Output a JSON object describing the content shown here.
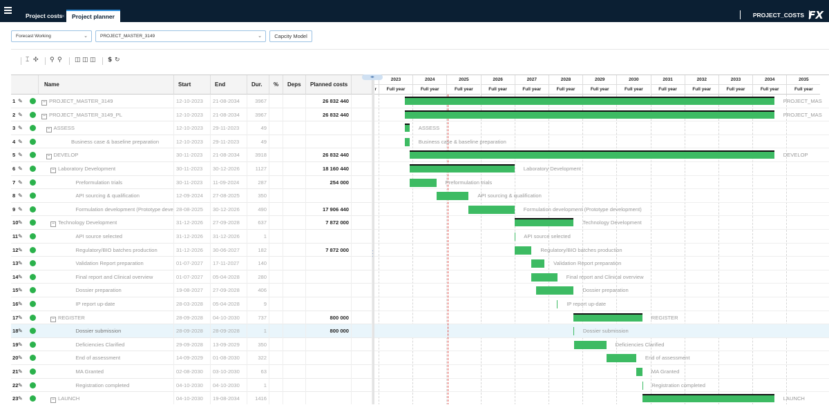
{
  "topbar": {
    "tabs": [
      {
        "label": "Project costs",
        "close": "×"
      },
      {
        "label": "Project planner"
      }
    ],
    "title": "PROJECT_COSTS",
    "logo": "FX"
  },
  "selectors": {
    "version": "Forecast Working",
    "project": "PROJECT_MASTER_3149",
    "capacity_button": "Capcity Model"
  },
  "toolbar": {
    "icons": [
      "column-fit-icon",
      "expand-all-icon",
      "zoom-out-icon",
      "zoom-in-icon",
      "view-layout-1-icon",
      "view-layout-2-icon",
      "view-layout-3-icon",
      "currency-icon",
      "refresh-icon"
    ],
    "currency": "$",
    "refresh": "↻"
  },
  "table": {
    "headers": {
      "name": "Name",
      "start": "Start",
      "end": "End",
      "dur": "Dur.",
      "pct": "%",
      "deps": "Deps",
      "cost": "Planned costs"
    },
    "rows": [
      {
        "num": "1",
        "level": 0,
        "expander": "−",
        "name": "PROJECT_MASTER_3149",
        "start": "12-10-2023",
        "end": "21-08-2034",
        "dur": "3967",
        "cost": "26 832 440"
      },
      {
        "num": "2",
        "level": 0,
        "expander": "−",
        "name": "PROJECT_MASTER_3149_PL",
        "start": "12-10-2023",
        "end": "21-08-2034",
        "dur": "3967",
        "cost": "26 832 440"
      },
      {
        "num": "3",
        "level": 1,
        "expander": "−",
        "name": "ASSESS",
        "start": "12-10-2023",
        "end": "29-11-2023",
        "dur": "49",
        "cost": ""
      },
      {
        "num": "4",
        "level": 2,
        "expander": "",
        "name": "Business case & baseline preparation",
        "start": "12-10-2023",
        "end": "29-11-2023",
        "dur": "49",
        "cost": ""
      },
      {
        "num": "5",
        "level": 1,
        "expander": "−",
        "name": "DEVELOP",
        "start": "30-11-2023",
        "end": "21-08-2034",
        "dur": "3918",
        "cost": "26 832 440"
      },
      {
        "num": "6",
        "level": 2,
        "expander": "−",
        "name": "Laboratory Development",
        "start": "30-11-2023",
        "end": "30-12-2026",
        "dur": "1127",
        "cost": "18 160 440"
      },
      {
        "num": "7",
        "level": 3,
        "expander": "",
        "name": "Preformulation trials",
        "start": "30-11-2023",
        "end": "11-09-2024",
        "dur": "287",
        "cost": "254 000"
      },
      {
        "num": "8",
        "level": 3,
        "expander": "",
        "name": "API sourcing & qualification",
        "start": "12-09-2024",
        "end": "27-08-2025",
        "dur": "350",
        "cost": ""
      },
      {
        "num": "9",
        "level": 3,
        "expander": "",
        "name": "Formulation development (Prototype develop",
        "start": "28-08-2025",
        "end": "30-12-2026",
        "dur": "490",
        "cost": "17 906 440"
      },
      {
        "num": "10",
        "level": 2,
        "expander": "−",
        "name": "Technology Development",
        "start": "31-12-2026",
        "end": "27-09-2028",
        "dur": "637",
        "cost": "7 872 000"
      },
      {
        "num": "11",
        "level": 3,
        "expander": "",
        "name": "API source selected",
        "start": "31-12-2026",
        "end": "31-12-2026",
        "dur": "1",
        "cost": ""
      },
      {
        "num": "12",
        "level": 3,
        "expander": "",
        "name": "Regulatory/BIO batches production",
        "start": "31-12-2026",
        "end": "30-06-2027",
        "dur": "182",
        "cost": "7 872 000"
      },
      {
        "num": "13",
        "level": 3,
        "expander": "",
        "name": "Validation Report preparation",
        "start": "01-07-2027",
        "end": "17-11-2027",
        "dur": "140",
        "cost": ""
      },
      {
        "num": "14",
        "level": 3,
        "expander": "",
        "name": "Final report and Clinical overview",
        "start": "01-07-2027",
        "end": "05-04-2028",
        "dur": "280",
        "cost": ""
      },
      {
        "num": "15",
        "level": 3,
        "expander": "",
        "name": "Dossier preparation",
        "start": "19-08-2027",
        "end": "27-09-2028",
        "dur": "406",
        "cost": ""
      },
      {
        "num": "16",
        "level": 3,
        "expander": "",
        "name": "IP report up-date",
        "start": "28-03-2028",
        "end": "05-04-2028",
        "dur": "9",
        "cost": ""
      },
      {
        "num": "17",
        "level": 2,
        "expander": "−",
        "name": "REGISTER",
        "start": "28-09-2028",
        "end": "04-10-2030",
        "dur": "737",
        "cost": "800 000"
      },
      {
        "num": "18",
        "level": 3,
        "expander": "",
        "name": "Dossier submission",
        "start": "28-09-2028",
        "end": "28-09-2028",
        "dur": "1",
        "cost": "800 000",
        "selected": true
      },
      {
        "num": "19",
        "level": 3,
        "expander": "",
        "name": "Deficiencies Clarified",
        "start": "29-09-2028",
        "end": "13-09-2029",
        "dur": "350",
        "cost": ""
      },
      {
        "num": "20",
        "level": 3,
        "expander": "",
        "name": "End of assessment",
        "start": "14-09-2029",
        "end": "01-08-2030",
        "dur": "322",
        "cost": ""
      },
      {
        "num": "21",
        "level": 3,
        "expander": "",
        "name": "MA Granted",
        "start": "02-08-2030",
        "end": "03-10-2030",
        "dur": "63",
        "cost": ""
      },
      {
        "num": "22",
        "level": 3,
        "expander": "",
        "name": "Registration completed",
        "start": "04-10-2030",
        "end": "04-10-2030",
        "dur": "1",
        "cost": ""
      },
      {
        "num": "23",
        "level": 2,
        "expander": "−",
        "name": "LAUNCH",
        "start": "04-10-2030",
        "end": "19-08-2034",
        "dur": "1416",
        "cost": ""
      }
    ]
  },
  "gantt": {
    "prev_label": "r",
    "scroll_arrows": "◂▸",
    "years": [
      "2023",
      "2024",
      "2025",
      "2026",
      "2027",
      "2028",
      "2029",
      "2030",
      "2031",
      "2032",
      "2033",
      "2034",
      "2035"
    ],
    "period_label": "Full year",
    "bars": [
      {
        "start": 2023.78,
        "end": 2034.64,
        "summary": true,
        "label": "PROJECT_MAS"
      },
      {
        "start": 2023.78,
        "end": 2034.64,
        "summary": true,
        "label": "PROJECT_MAS"
      },
      {
        "start": 2023.78,
        "end": 2023.91,
        "summary": true,
        "label": "ASSESS"
      },
      {
        "start": 2023.78,
        "end": 2023.91,
        "summary": false,
        "label": "Business case & baseline preparation"
      },
      {
        "start": 2023.91,
        "end": 2034.64,
        "summary": true,
        "label": "DEVELOP"
      },
      {
        "start": 2023.91,
        "end": 2027.0,
        "summary": true,
        "label": "Laboratory Development"
      },
      {
        "start": 2023.91,
        "end": 2024.7,
        "summary": false,
        "label": "Preformulation trials"
      },
      {
        "start": 2024.7,
        "end": 2025.65,
        "summary": false,
        "label": "API sourcing & qualification"
      },
      {
        "start": 2025.65,
        "end": 2027.0,
        "summary": false,
        "label": "Formulation development (Prototype development)"
      },
      {
        "start": 2027.0,
        "end": 2028.74,
        "summary": true,
        "label": "Technology Development"
      },
      {
        "start": 2027.0,
        "end": 2027.01,
        "summary": false,
        "label": "API source selected"
      },
      {
        "start": 2027.0,
        "end": 2027.5,
        "summary": false,
        "label": "Regulatory/BIO batches production"
      },
      {
        "start": 2027.5,
        "end": 2027.88,
        "summary": false,
        "label": "Validation Report preparation"
      },
      {
        "start": 2027.5,
        "end": 2028.26,
        "summary": false,
        "label": "Final report and Clinical overview"
      },
      {
        "start": 2027.63,
        "end": 2028.74,
        "summary": false,
        "label": "Dossier preparation"
      },
      {
        "start": 2028.24,
        "end": 2028.27,
        "summary": false,
        "label": "IP report up-date"
      },
      {
        "start": 2028.74,
        "end": 2030.76,
        "summary": true,
        "label": "REGISTER"
      },
      {
        "start": 2028.74,
        "end": 2028.75,
        "summary": false,
        "label": "Dossier submission"
      },
      {
        "start": 2028.75,
        "end": 2029.7,
        "summary": false,
        "label": "Deficiencies Clarified"
      },
      {
        "start": 2029.7,
        "end": 2030.58,
        "summary": false,
        "label": "End of assessment"
      },
      {
        "start": 2030.58,
        "end": 2030.76,
        "summary": false,
        "label": "MA Granted"
      },
      {
        "start": 2030.76,
        "end": 2030.77,
        "summary": false,
        "label": "Registration completed"
      },
      {
        "start": 2030.76,
        "end": 2034.64,
        "summary": true,
        "label": "LAUNCH"
      }
    ],
    "bar_color": "#3dbb63",
    "today_color": "#e0443e"
  }
}
